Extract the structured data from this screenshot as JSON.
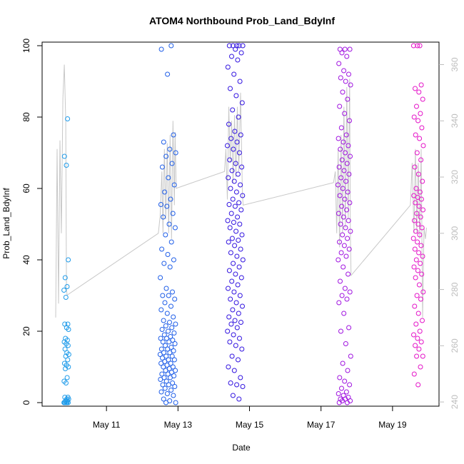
{
  "chart_data": {
    "type": "scatter",
    "title": "ATOM4 Northbound Prob_Land_BdyInf",
    "xlabel": "Date",
    "ylabel": "Prob_Land_BdyInf",
    "x_ticks": [
      "May 11",
      "May 13",
      "May 15",
      "May 17",
      "May 19"
    ],
    "x_tick_values": [
      11,
      13,
      15,
      17,
      19
    ],
    "xlim": [
      9.2,
      20.3
    ],
    "ylim": [
      -1,
      101
    ],
    "y_ticks": [
      0,
      20,
      40,
      60,
      80,
      100
    ],
    "y2_ticks": [
      240,
      260,
      280,
      300,
      320,
      340,
      360
    ],
    "y2lim": [
      238.5,
      368
    ],
    "grid": false,
    "colors": {
      "cluster_may10": "#1e9bea",
      "cluster_may13": "#1f5ee8",
      "cluster_may15": "#3214e0",
      "cluster_may18": "#a014e0",
      "cluster_may20": "#e414c8",
      "line": "#c8c8c8",
      "right_axis": "#bdbdbd"
    },
    "clusters": [
      {
        "id": "may10",
        "color": "#1e9bea",
        "x_center": 9.88,
        "x_spread": 0.07,
        "y": [
          0,
          0,
          0,
          0,
          0,
          0,
          0.5,
          0.5,
          1,
          1,
          1.5,
          1.5,
          5.5,
          6,
          7,
          9.5,
          10,
          10.5,
          11,
          12,
          13,
          13.5,
          14,
          15,
          16,
          16.5,
          17,
          17.5,
          18,
          20.5,
          21,
          22,
          22,
          29.5,
          31.5,
          32.5,
          35,
          40,
          66.5,
          69,
          79.5
        ]
      },
      {
        "id": "may13",
        "color": "#1f5ee8",
        "x_center": 12.72,
        "x_spread": 0.22,
        "y": [
          0,
          0,
          0.5,
          1,
          2,
          2.5,
          3,
          3.5,
          4,
          4.5,
          5,
          5,
          5.5,
          6,
          6.5,
          7,
          7,
          7.5,
          8,
          8,
          8.5,
          9,
          9,
          9.5,
          10,
          10,
          10.5,
          11,
          11,
          11.5,
          12,
          12,
          12.5,
          13,
          13,
          13.5,
          14,
          14,
          14.5,
          15,
          15,
          15.5,
          16,
          16.5,
          17,
          17,
          17.5,
          18,
          18,
          18.5,
          19,
          19.5,
          20,
          20.5,
          21,
          21.5,
          22,
          22.5,
          23,
          24,
          25,
          26,
          27,
          28,
          29,
          30,
          30,
          31,
          32,
          35,
          38,
          39,
          40,
          41.5,
          43,
          45,
          47,
          49,
          50,
          52,
          53,
          55,
          55.5,
          57,
          59,
          61,
          63,
          66,
          67,
          69,
          70,
          71,
          73,
          75,
          92,
          99,
          100
        ]
      },
      {
        "id": "may15",
        "color": "#3214e0",
        "x_center": 14.6,
        "x_spread": 0.22,
        "y": [
          1,
          2,
          4.5,
          5,
          5.5,
          7,
          9,
          10,
          12,
          13,
          15,
          16,
          17,
          18,
          19,
          20,
          21,
          22,
          22.5,
          23,
          24,
          25,
          26,
          27,
          28,
          29,
          30,
          31,
          32,
          33,
          34,
          35,
          36,
          37,
          38,
          39,
          40,
          41,
          42,
          43,
          44,
          45,
          45.5,
          46,
          47,
          48,
          49,
          50,
          50.5,
          51,
          52,
          53,
          54,
          55,
          55.5,
          56,
          57,
          58,
          59,
          60,
          61,
          62,
          63,
          64,
          65,
          66,
          67,
          68,
          70,
          71,
          72,
          73,
          74,
          75,
          76,
          78,
          80,
          82,
          84,
          86,
          88,
          90,
          92,
          94,
          96,
          97,
          98,
          99,
          100,
          100,
          100,
          100,
          100
        ]
      },
      {
        "id": "may18",
        "color": "#a014e0",
        "x_center": 17.65,
        "x_spread": 0.18,
        "y": [
          0,
          0,
          0.5,
          0.5,
          1,
          1,
          1.5,
          2,
          2.5,
          3,
          4,
          5,
          6,
          7,
          9,
          11,
          13,
          16.5,
          20,
          21,
          25,
          28,
          29,
          30,
          31,
          32,
          34,
          36,
          38,
          40,
          41,
          42,
          43,
          44,
          45,
          46,
          47,
          48,
          49,
          50,
          51,
          52,
          53,
          54,
          55,
          56,
          57,
          58,
          59,
          60,
          61,
          62,
          63,
          64,
          65,
          66,
          67,
          68,
          69,
          70,
          71,
          72,
          73,
          74,
          75,
          77,
          79,
          81,
          83,
          85,
          87,
          89,
          90,
          91,
          92,
          93,
          95,
          97,
          98,
          99,
          99,
          99
        ]
      },
      {
        "id": "may20",
        "color": "#e414c8",
        "x_center": 19.72,
        "x_spread": 0.14,
        "y": [
          5,
          8,
          10,
          13,
          13,
          15,
          16,
          17,
          18,
          19,
          20,
          22,
          23,
          25,
          27,
          29,
          30,
          31,
          33,
          35,
          36,
          37,
          38,
          39,
          40,
          41,
          42,
          43,
          44,
          45,
          46,
          47,
          48,
          49,
          50,
          51,
          52,
          53,
          54,
          55,
          56,
          57,
          57.5,
          58,
          59,
          60,
          62,
          64,
          66,
          68,
          70,
          72,
          74,
          75,
          77,
          79,
          80,
          81,
          83,
          85,
          87,
          88,
          89,
          100,
          100,
          100
        ]
      }
    ],
    "line_series": {
      "name": "",
      "axis": "right",
      "points": [
        [
          9.58,
          270
        ],
        [
          9.62,
          330
        ],
        [
          9.66,
          275
        ],
        [
          9.7,
          333
        ],
        [
          9.74,
          300
        ],
        [
          9.78,
          348
        ],
        [
          9.82,
          360
        ],
        [
          9.86,
          340
        ],
        [
          9.88,
          280
        ],
        [
          9.9,
          278
        ],
        [
          12.45,
          300
        ],
        [
          12.5,
          306
        ],
        [
          12.55,
          322
        ],
        [
          12.58,
          300
        ],
        [
          12.62,
          330
        ],
        [
          12.66,
          305
        ],
        [
          12.7,
          332
        ],
        [
          12.74,
          300
        ],
        [
          12.78,
          335
        ],
        [
          12.82,
          298
        ],
        [
          12.86,
          340
        ],
        [
          12.9,
          310
        ],
        [
          12.92,
          336
        ],
        [
          12.95,
          316
        ],
        [
          14.3,
          322
        ],
        [
          14.34,
          330
        ],
        [
          14.38,
          312
        ],
        [
          14.42,
          345
        ],
        [
          14.46,
          325
        ],
        [
          14.5,
          340
        ],
        [
          14.54,
          318
        ],
        [
          14.58,
          342
        ],
        [
          14.62,
          320
        ],
        [
          14.66,
          345
        ],
        [
          14.7,
          322
        ],
        [
          14.75,
          350
        ],
        [
          14.8,
          315
        ],
        [
          14.82,
          310
        ],
        [
          17.35,
          318
        ],
        [
          17.4,
          322
        ],
        [
          17.44,
          300
        ],
        [
          17.48,
          330
        ],
        [
          17.52,
          295
        ],
        [
          17.56,
          335
        ],
        [
          17.6,
          300
        ],
        [
          17.64,
          345
        ],
        [
          17.68,
          302
        ],
        [
          17.72,
          352
        ],
        [
          17.76,
          305
        ],
        [
          17.8,
          355
        ],
        [
          17.82,
          300
        ],
        [
          17.84,
          285
        ],
        [
          19.5,
          310
        ],
        [
          19.55,
          325
        ],
        [
          19.6,
          300
        ],
        [
          19.64,
          330
        ],
        [
          19.68,
          300
        ],
        [
          19.72,
          325
        ],
        [
          19.76,
          298
        ],
        [
          19.8,
          330
        ],
        [
          19.84,
          270
        ],
        [
          19.88,
          302
        ],
        [
          19.92,
          298
        ],
        [
          19.95,
          302
        ]
      ]
    }
  }
}
